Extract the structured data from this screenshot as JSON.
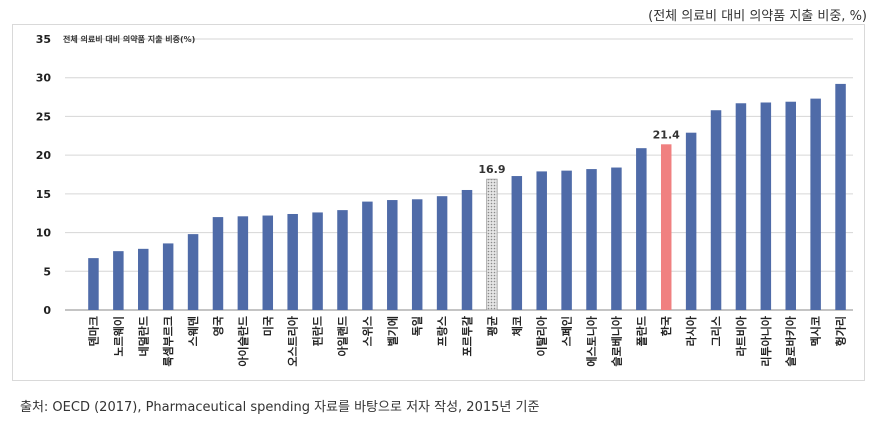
{
  "unit_note": "(전체 의료비 대비 의약품 지출 비중, %)",
  "source_note": "출처: OECD (2017), Pharmaceutical spending 자료를 바탕으로 저자 작성, 2015년 기준",
  "chart_data": {
    "type": "bar",
    "title": "전체 의료비 대비 의약품 지출 비중(%)",
    "xlabel": "",
    "ylabel": "",
    "ylim": [
      0,
      35
    ],
    "yticks": [
      0,
      5,
      10,
      15,
      20,
      25,
      30,
      35
    ],
    "grid": true,
    "categories": [
      "덴마크",
      "노르웨이",
      "네덜란드",
      "룩셈부르크",
      "스웨덴",
      "영국",
      "아이슬란드",
      "미국",
      "오스트리아",
      "핀란드",
      "아일랜드",
      "스위스",
      "벨기에",
      "독일",
      "프랑스",
      "포르투갈",
      "평균",
      "체코",
      "이탈리아",
      "스페인",
      "에스토니아",
      "슬로베니아",
      "폴란드",
      "한국",
      "라시아",
      "그리스",
      "라트비아",
      "리투아니아",
      "슬로바키아",
      "멕시코",
      "헝가리"
    ],
    "values": [
      6.7,
      7.6,
      7.9,
      8.6,
      9.8,
      12.0,
      12.1,
      12.2,
      12.4,
      12.6,
      12.9,
      14.0,
      14.2,
      14.3,
      14.7,
      15.5,
      16.9,
      17.3,
      17.9,
      18.0,
      18.2,
      18.4,
      20.9,
      21.4,
      22.9,
      25.8,
      26.7,
      26.8,
      26.9,
      27.3,
      29.2
    ],
    "data_labels": {
      "평균": "16.9",
      "한국": "21.4"
    },
    "colors": {
      "default": "#4f6ba8",
      "highlight": "#f08080",
      "average": "#c8c8c8"
    }
  }
}
